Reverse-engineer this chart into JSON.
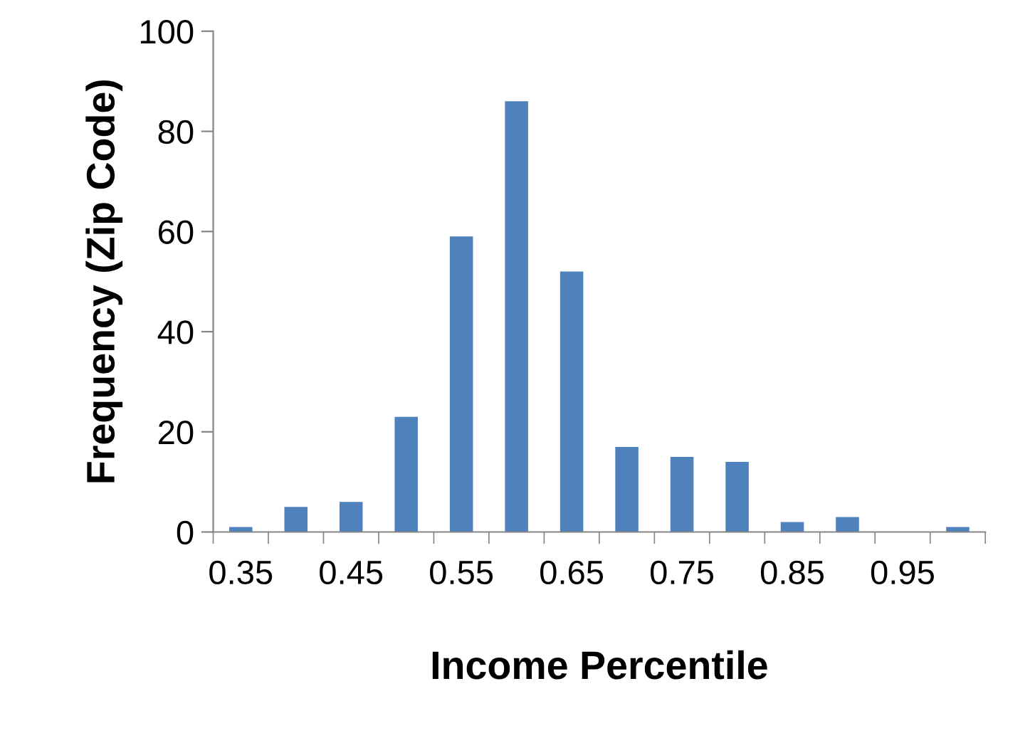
{
  "chart_data": {
    "type": "bar",
    "xlabel": "Income Percentile",
    "ylabel": "Frequency (Zip Code)",
    "categories": [
      "0.35",
      null,
      "0.45",
      null,
      "0.55",
      null,
      "0.65",
      null,
      "0.75",
      null,
      "0.85",
      null,
      "0.95",
      null
    ],
    "values": [
      1,
      5,
      6,
      23,
      59,
      86,
      52,
      17,
      15,
      14,
      2,
      3,
      0,
      1
    ],
    "color": "#4f81bd",
    "ylim": [
      0,
      100
    ],
    "yticks": [
      0,
      20,
      40,
      60,
      80,
      100
    ],
    "grid": false,
    "legend": false
  }
}
